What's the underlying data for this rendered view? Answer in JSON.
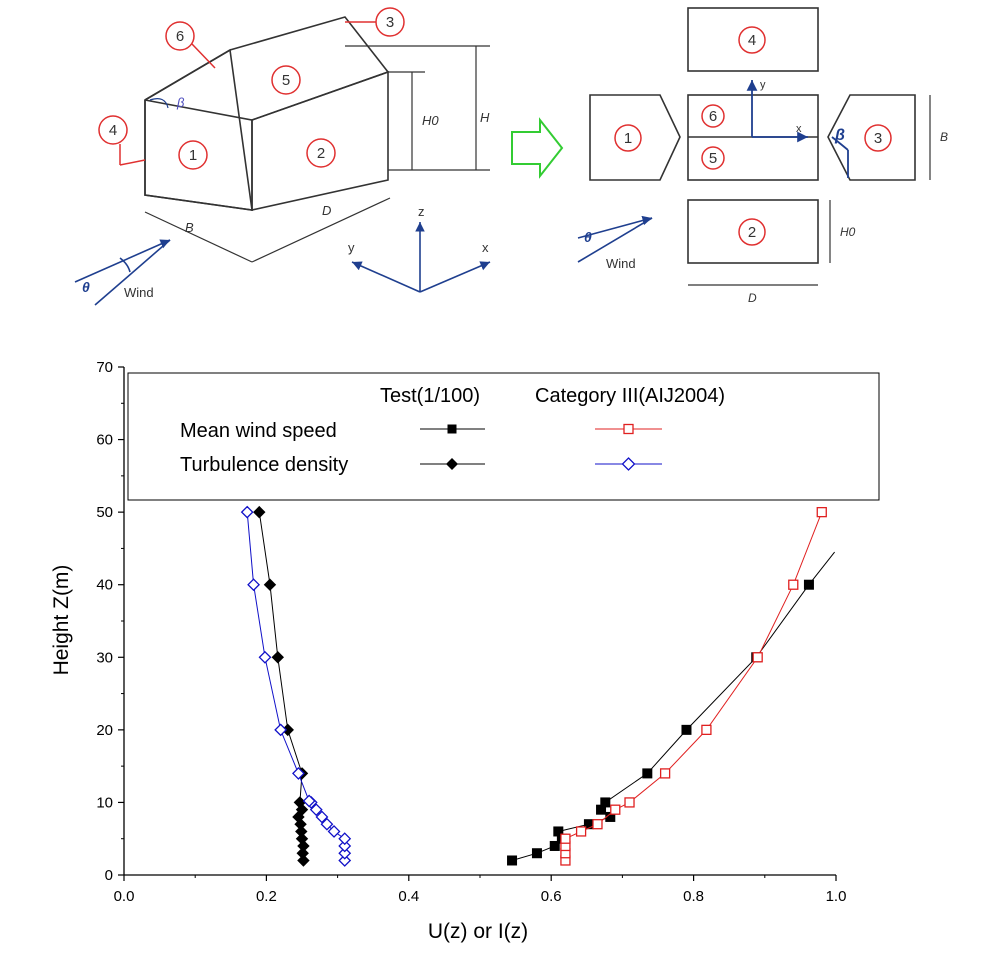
{
  "diagram": {
    "left_labels": {
      "face_1": "1",
      "face_2": "2",
      "face_3": "3",
      "face_4": "4",
      "face_5": "5",
      "face_6": "6",
      "beta": "β",
      "h0": "H0",
      "h": "H",
      "b": "B",
      "d": "D",
      "theta": "θ",
      "wind": "Wind",
      "axis_z": "z",
      "axis_y": "y",
      "axis_x": "x"
    },
    "right_labels": {
      "face_1": "1",
      "face_2": "2",
      "face_3": "3",
      "face_4": "4",
      "face_5": "5",
      "face_6": "6",
      "axis_y": "y",
      "axis_x": "x",
      "beta": "β",
      "b": "B",
      "h0": "H0",
      "d": "D",
      "theta": "θ",
      "wind": "Wind"
    },
    "colors": {
      "line": "#333333",
      "callout": "#e03030",
      "blue": "#1f3f8f",
      "arrow": "#33cc33"
    }
  },
  "chart_data": {
    "type": "scatter",
    "xlabel": "U(z) or I(z)",
    "ylabel": "Height Z(m)",
    "xlim": [
      0.0,
      1.0
    ],
    "ylim": [
      0,
      70
    ],
    "xticks": [
      "0.0",
      "0.2",
      "0.4",
      "0.6",
      "0.8",
      "1.0"
    ],
    "yticks": [
      "0",
      "10",
      "20",
      "30",
      "40",
      "50",
      "60",
      "70"
    ],
    "legend": {
      "header_test": "Test(1/100)",
      "header_aij": "Category III(AIJ2004)",
      "row_mean": "Mean wind speed",
      "row_turb": "Turbulence density"
    },
    "series": [
      {
        "name": "Mean wind speed - Test(1/100)",
        "marker": "square-filled",
        "color": "#000000",
        "x": [
          0.545,
          0.58,
          0.605,
          0.61,
          0.615,
          0.653,
          0.67,
          0.676,
          0.683,
          0.735,
          0.79,
          0.888,
          0.962
        ],
        "y": [
          2,
          3,
          4,
          6,
          5,
          7,
          9,
          10,
          8,
          14,
          20,
          30,
          40
        ],
        "line_extends_to": [
          0.998,
          44.5
        ]
      },
      {
        "name": "Mean wind speed - Category III(AIJ2004)",
        "marker": "square-open",
        "color": "#e02020",
        "x": [
          0.62,
          0.62,
          0.62,
          0.62,
          0.642,
          0.665,
          0.69,
          0.71,
          0.76,
          0.818,
          0.89,
          0.94,
          0.98
        ],
        "y": [
          2,
          3,
          4,
          5,
          6,
          7,
          9,
          10,
          14,
          20,
          30,
          40,
          50
        ]
      },
      {
        "name": "Turbulence density - Test(1/100)",
        "marker": "diamond-filled",
        "color": "#000000",
        "x": [
          0.252,
          0.251,
          0.252,
          0.25,
          0.249,
          0.248,
          0.245,
          0.25,
          0.247,
          0.25,
          0.23,
          0.216,
          0.205,
          0.19
        ],
        "y": [
          2,
          3,
          4,
          5,
          6,
          7,
          8,
          9,
          10,
          14,
          20,
          30,
          40,
          50
        ]
      },
      {
        "name": "Turbulence density - Category III(AIJ2004)",
        "marker": "diamond-open",
        "color": "#1010c8",
        "x": [
          0.31,
          0.31,
          0.31,
          0.31,
          0.295,
          0.285,
          0.278,
          0.27,
          0.263,
          0.26,
          0.245,
          0.22,
          0.198,
          0.182,
          0.173
        ],
        "y": [
          2,
          3,
          4,
          5,
          6,
          7,
          8,
          9,
          10,
          10.2,
          14,
          20,
          30,
          40,
          50
        ]
      }
    ]
  }
}
